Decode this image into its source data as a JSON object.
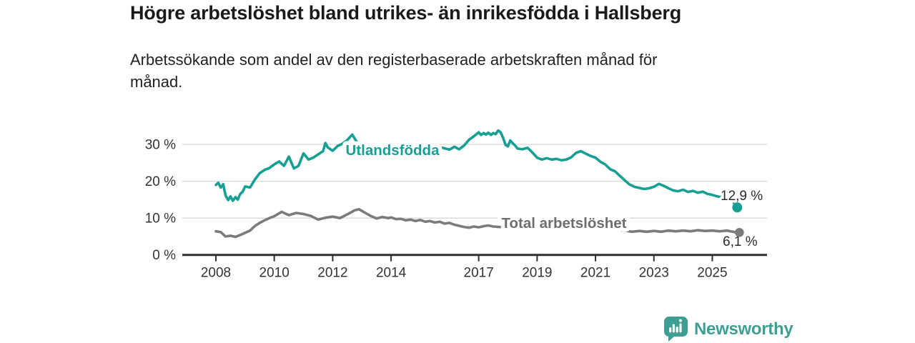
{
  "header": {
    "title": "Högre arbetslöshet bland utrikes- än inrikesfödda i Hallsberg",
    "subtitle_lines": [
      "Arbetssökande som andel av den registerbaserade arbetskraften månad för",
      "månad."
    ]
  },
  "logo": {
    "wordmark": "Newsworthy",
    "icon": "bar-chart-speech-bubble"
  },
  "colors": {
    "teal_series": "#16a094",
    "gray_series": "#7b7b7e",
    "gray_label": "#6d6d72",
    "value_label_text": "#2b2b2b",
    "axis_line": "#2f2f2f",
    "gridline": "#d9d9d9",
    "tick_text": "#333333",
    "title_text": "#1a1a1a",
    "brand_teal": "#3f9e92",
    "background": "#ffffff"
  },
  "chart_data": {
    "type": "line",
    "title": "Högre arbetslöshet bland utrikes- än inrikesfödda i Hallsberg",
    "subtitle": "Arbetssökande som andel av den registerbaserade arbetskraften månad för månad.",
    "grid": true,
    "legend_position": "inline-labels",
    "x_axis": {
      "ticks": [
        2008,
        2010,
        2012,
        2014,
        2017,
        2019,
        2021,
        2023,
        2025
      ],
      "range": [
        2008,
        2026.2
      ]
    },
    "y_axis": {
      "ticks": [
        0,
        10,
        20,
        30
      ],
      "suffix": " %",
      "range": [
        0,
        35
      ]
    },
    "series": [
      {
        "name": "Utlandsfödda",
        "color": "#16a094",
        "end_label": "12,9 %",
        "end_value": 12.9,
        "points": [
          [
            2008.0,
            19.0
          ],
          [
            2008.08,
            19.6
          ],
          [
            2008.17,
            18.3
          ],
          [
            2008.25,
            19.2
          ],
          [
            2008.33,
            16.2
          ],
          [
            2008.42,
            14.9
          ],
          [
            2008.5,
            15.9
          ],
          [
            2008.58,
            14.7
          ],
          [
            2008.67,
            15.7
          ],
          [
            2008.75,
            15.0
          ],
          [
            2008.83,
            16.5
          ],
          [
            2008.92,
            17.2
          ],
          [
            2009.0,
            18.6
          ],
          [
            2009.17,
            18.3
          ],
          [
            2009.33,
            20.4
          ],
          [
            2009.5,
            22.2
          ],
          [
            2009.67,
            23.1
          ],
          [
            2009.83,
            23.6
          ],
          [
            2010.0,
            24.6
          ],
          [
            2010.17,
            25.4
          ],
          [
            2010.33,
            24.2
          ],
          [
            2010.5,
            26.7
          ],
          [
            2010.67,
            23.5
          ],
          [
            2010.83,
            24.2
          ],
          [
            2011.0,
            27.6
          ],
          [
            2011.17,
            25.9
          ],
          [
            2011.33,
            26.4
          ],
          [
            2011.5,
            27.3
          ],
          [
            2011.67,
            28.2
          ],
          [
            2011.75,
            30.4
          ],
          [
            2011.83,
            29.2
          ],
          [
            2012.0,
            28.3
          ],
          [
            2012.17,
            29.6
          ],
          [
            2012.33,
            30.2
          ],
          [
            2012.5,
            31.2
          ],
          [
            2012.67,
            32.7
          ],
          [
            2012.83,
            30.6
          ],
          [
            2013.0,
            29.6
          ],
          [
            2013.25,
            29.1
          ],
          [
            2013.5,
            28.6
          ],
          [
            2013.75,
            28.9
          ],
          [
            2014.0,
            28.5
          ],
          [
            2014.25,
            28.1
          ],
          [
            2014.5,
            28.7
          ],
          [
            2014.75,
            28.3
          ],
          [
            2015.0,
            28.6
          ],
          [
            2015.25,
            28.1
          ],
          [
            2015.5,
            28.4
          ],
          [
            2015.75,
            29.1
          ],
          [
            2016.0,
            28.6
          ],
          [
            2016.17,
            29.4
          ],
          [
            2016.33,
            28.7
          ],
          [
            2016.5,
            29.7
          ],
          [
            2016.67,
            31.3
          ],
          [
            2016.83,
            32.2
          ],
          [
            2017.0,
            33.3
          ],
          [
            2017.08,
            32.6
          ],
          [
            2017.17,
            33.1
          ],
          [
            2017.25,
            32.7
          ],
          [
            2017.33,
            33.2
          ],
          [
            2017.42,
            32.6
          ],
          [
            2017.5,
            33.1
          ],
          [
            2017.58,
            32.8
          ],
          [
            2017.67,
            33.8
          ],
          [
            2017.75,
            33.3
          ],
          [
            2017.83,
            31.9
          ],
          [
            2017.92,
            29.9
          ],
          [
            2018.0,
            29.5
          ],
          [
            2018.08,
            31.1
          ],
          [
            2018.17,
            30.3
          ],
          [
            2018.25,
            29.7
          ],
          [
            2018.33,
            28.9
          ],
          [
            2018.5,
            28.7
          ],
          [
            2018.67,
            29.1
          ],
          [
            2018.83,
            27.9
          ],
          [
            2019.0,
            26.4
          ],
          [
            2019.17,
            25.9
          ],
          [
            2019.33,
            26.3
          ],
          [
            2019.5,
            25.9
          ],
          [
            2019.67,
            26.1
          ],
          [
            2019.83,
            25.7
          ],
          [
            2020.0,
            25.9
          ],
          [
            2020.17,
            26.5
          ],
          [
            2020.33,
            27.7
          ],
          [
            2020.5,
            28.2
          ],
          [
            2020.67,
            27.5
          ],
          [
            2020.83,
            26.9
          ],
          [
            2021.0,
            26.4
          ],
          [
            2021.17,
            25.3
          ],
          [
            2021.33,
            24.6
          ],
          [
            2021.5,
            23.3
          ],
          [
            2021.67,
            22.7
          ],
          [
            2021.83,
            21.5
          ],
          [
            2022.0,
            20.3
          ],
          [
            2022.17,
            19.1
          ],
          [
            2022.33,
            18.5
          ],
          [
            2022.5,
            18.2
          ],
          [
            2022.67,
            17.9
          ],
          [
            2022.83,
            18.1
          ],
          [
            2023.0,
            18.5
          ],
          [
            2023.17,
            19.3
          ],
          [
            2023.33,
            18.8
          ],
          [
            2023.5,
            18.1
          ],
          [
            2023.67,
            17.5
          ],
          [
            2023.83,
            17.3
          ],
          [
            2024.0,
            17.7
          ],
          [
            2024.17,
            17.1
          ],
          [
            2024.33,
            17.4
          ],
          [
            2024.5,
            16.9
          ],
          [
            2024.67,
            17.2
          ],
          [
            2024.83,
            16.6
          ],
          [
            2025.0,
            16.3
          ],
          [
            2025.17,
            15.9
          ],
          [
            2025.33,
            15.6
          ],
          [
            2025.5,
            15.3
          ],
          [
            2025.67,
            15.1
          ],
          [
            2025.83,
            12.9
          ]
        ]
      },
      {
        "name": "Total arbetslöshet",
        "color": "#7b7b7e",
        "end_label": "6,1 %",
        "end_value": 6.1,
        "points": [
          [
            2008.0,
            6.4
          ],
          [
            2008.17,
            6.2
          ],
          [
            2008.33,
            5.0
          ],
          [
            2008.5,
            5.2
          ],
          [
            2008.67,
            4.9
          ],
          [
            2008.83,
            5.4
          ],
          [
            2009.0,
            6.0
          ],
          [
            2009.17,
            6.6
          ],
          [
            2009.33,
            7.8
          ],
          [
            2009.5,
            8.7
          ],
          [
            2009.67,
            9.4
          ],
          [
            2009.83,
            10.0
          ],
          [
            2010.0,
            10.5
          ],
          [
            2010.25,
            11.7
          ],
          [
            2010.5,
            10.8
          ],
          [
            2010.75,
            11.4
          ],
          [
            2011.0,
            11.1
          ],
          [
            2011.25,
            10.6
          ],
          [
            2011.5,
            9.6
          ],
          [
            2011.75,
            10.1
          ],
          [
            2012.0,
            10.4
          ],
          [
            2012.25,
            10.0
          ],
          [
            2012.5,
            11.0
          ],
          [
            2012.75,
            12.1
          ],
          [
            2012.9,
            12.4
          ],
          [
            2013.1,
            11.5
          ],
          [
            2013.3,
            10.6
          ],
          [
            2013.5,
            9.9
          ],
          [
            2013.7,
            10.3
          ],
          [
            2013.9,
            10.0
          ],
          [
            2014.0,
            10.2
          ],
          [
            2014.17,
            9.7
          ],
          [
            2014.33,
            9.8
          ],
          [
            2014.5,
            9.4
          ],
          [
            2014.67,
            9.6
          ],
          [
            2014.83,
            9.2
          ],
          [
            2015.0,
            9.5
          ],
          [
            2015.17,
            9.0
          ],
          [
            2015.33,
            9.2
          ],
          [
            2015.5,
            8.8
          ],
          [
            2015.67,
            9.0
          ],
          [
            2015.83,
            8.5
          ],
          [
            2016.0,
            8.7
          ],
          [
            2016.17,
            8.2
          ],
          [
            2016.33,
            7.9
          ],
          [
            2016.5,
            7.6
          ],
          [
            2016.67,
            7.4
          ],
          [
            2016.83,
            7.7
          ],
          [
            2017.0,
            7.5
          ],
          [
            2017.17,
            7.8
          ],
          [
            2017.33,
            8.0
          ],
          [
            2017.5,
            7.7
          ],
          [
            2018.0,
            7.4
          ],
          [
            2018.5,
            7.2
          ],
          [
            2019.0,
            7.3
          ],
          [
            2019.5,
            7.0
          ],
          [
            2020.0,
            7.4
          ],
          [
            2020.5,
            7.8
          ],
          [
            2021.0,
            7.5
          ],
          [
            2021.5,
            7.0
          ],
          [
            2022.0,
            6.6
          ],
          [
            2022.25,
            6.3
          ],
          [
            2022.5,
            6.5
          ],
          [
            2022.75,
            6.3
          ],
          [
            2023.0,
            6.5
          ],
          [
            2023.25,
            6.3
          ],
          [
            2023.5,
            6.6
          ],
          [
            2023.75,
            6.4
          ],
          [
            2024.0,
            6.6
          ],
          [
            2024.25,
            6.4
          ],
          [
            2024.5,
            6.7
          ],
          [
            2024.75,
            6.5
          ],
          [
            2025.0,
            6.6
          ],
          [
            2025.25,
            6.4
          ],
          [
            2025.5,
            6.6
          ],
          [
            2025.83,
            6.1
          ]
        ]
      }
    ]
  }
}
